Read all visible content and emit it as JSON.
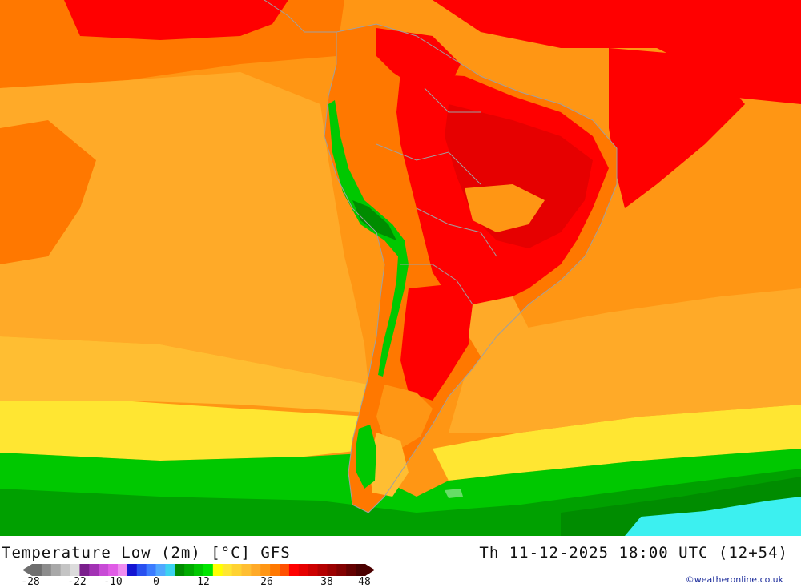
{
  "map": {
    "title": "Temperature Low (2m) [°C] GFS",
    "valid_time": "Th 11-12-2025 18:00 UTC (12+54)",
    "credit": "©weatheronline.co.uk"
  },
  "legend": {
    "tick_labels": [
      "-28",
      "-22",
      "-10",
      "0",
      "12",
      "26",
      "38",
      "48"
    ],
    "colors": [
      "#6e6e6e",
      "#8c8c8c",
      "#a8a8a8",
      "#c4c4c4",
      "#dcdcdc",
      "#7a1e8c",
      "#a232b4",
      "#c84ad6",
      "#e05ce6",
      "#ef8cf0",
      "#1414d2",
      "#2850f0",
      "#3c7cff",
      "#50a8ff",
      "#3cd2f0",
      "#008c00",
      "#00aa00",
      "#00c800",
      "#00e600",
      "#ffff00",
      "#ffe632",
      "#ffd232",
      "#ffbe32",
      "#ffaa28",
      "#ff9614",
      "#ff7800",
      "#ff5000",
      "#ff0000",
      "#e60000",
      "#cd0000",
      "#b40000",
      "#9b0000",
      "#820000",
      "#640000",
      "#4b0000"
    ]
  },
  "colors": {
    "ocean_orange": "#ff9614",
    "ocean_light_orange": "#ffaa28",
    "hot_red": "#ff0000",
    "deep_red": "#e60000",
    "yellow_band": "#ffe632",
    "green_south": "#00c800",
    "dark_green": "#008c00",
    "cyan_ice": "#3cf0f0",
    "borders": "#a0a0a0"
  }
}
